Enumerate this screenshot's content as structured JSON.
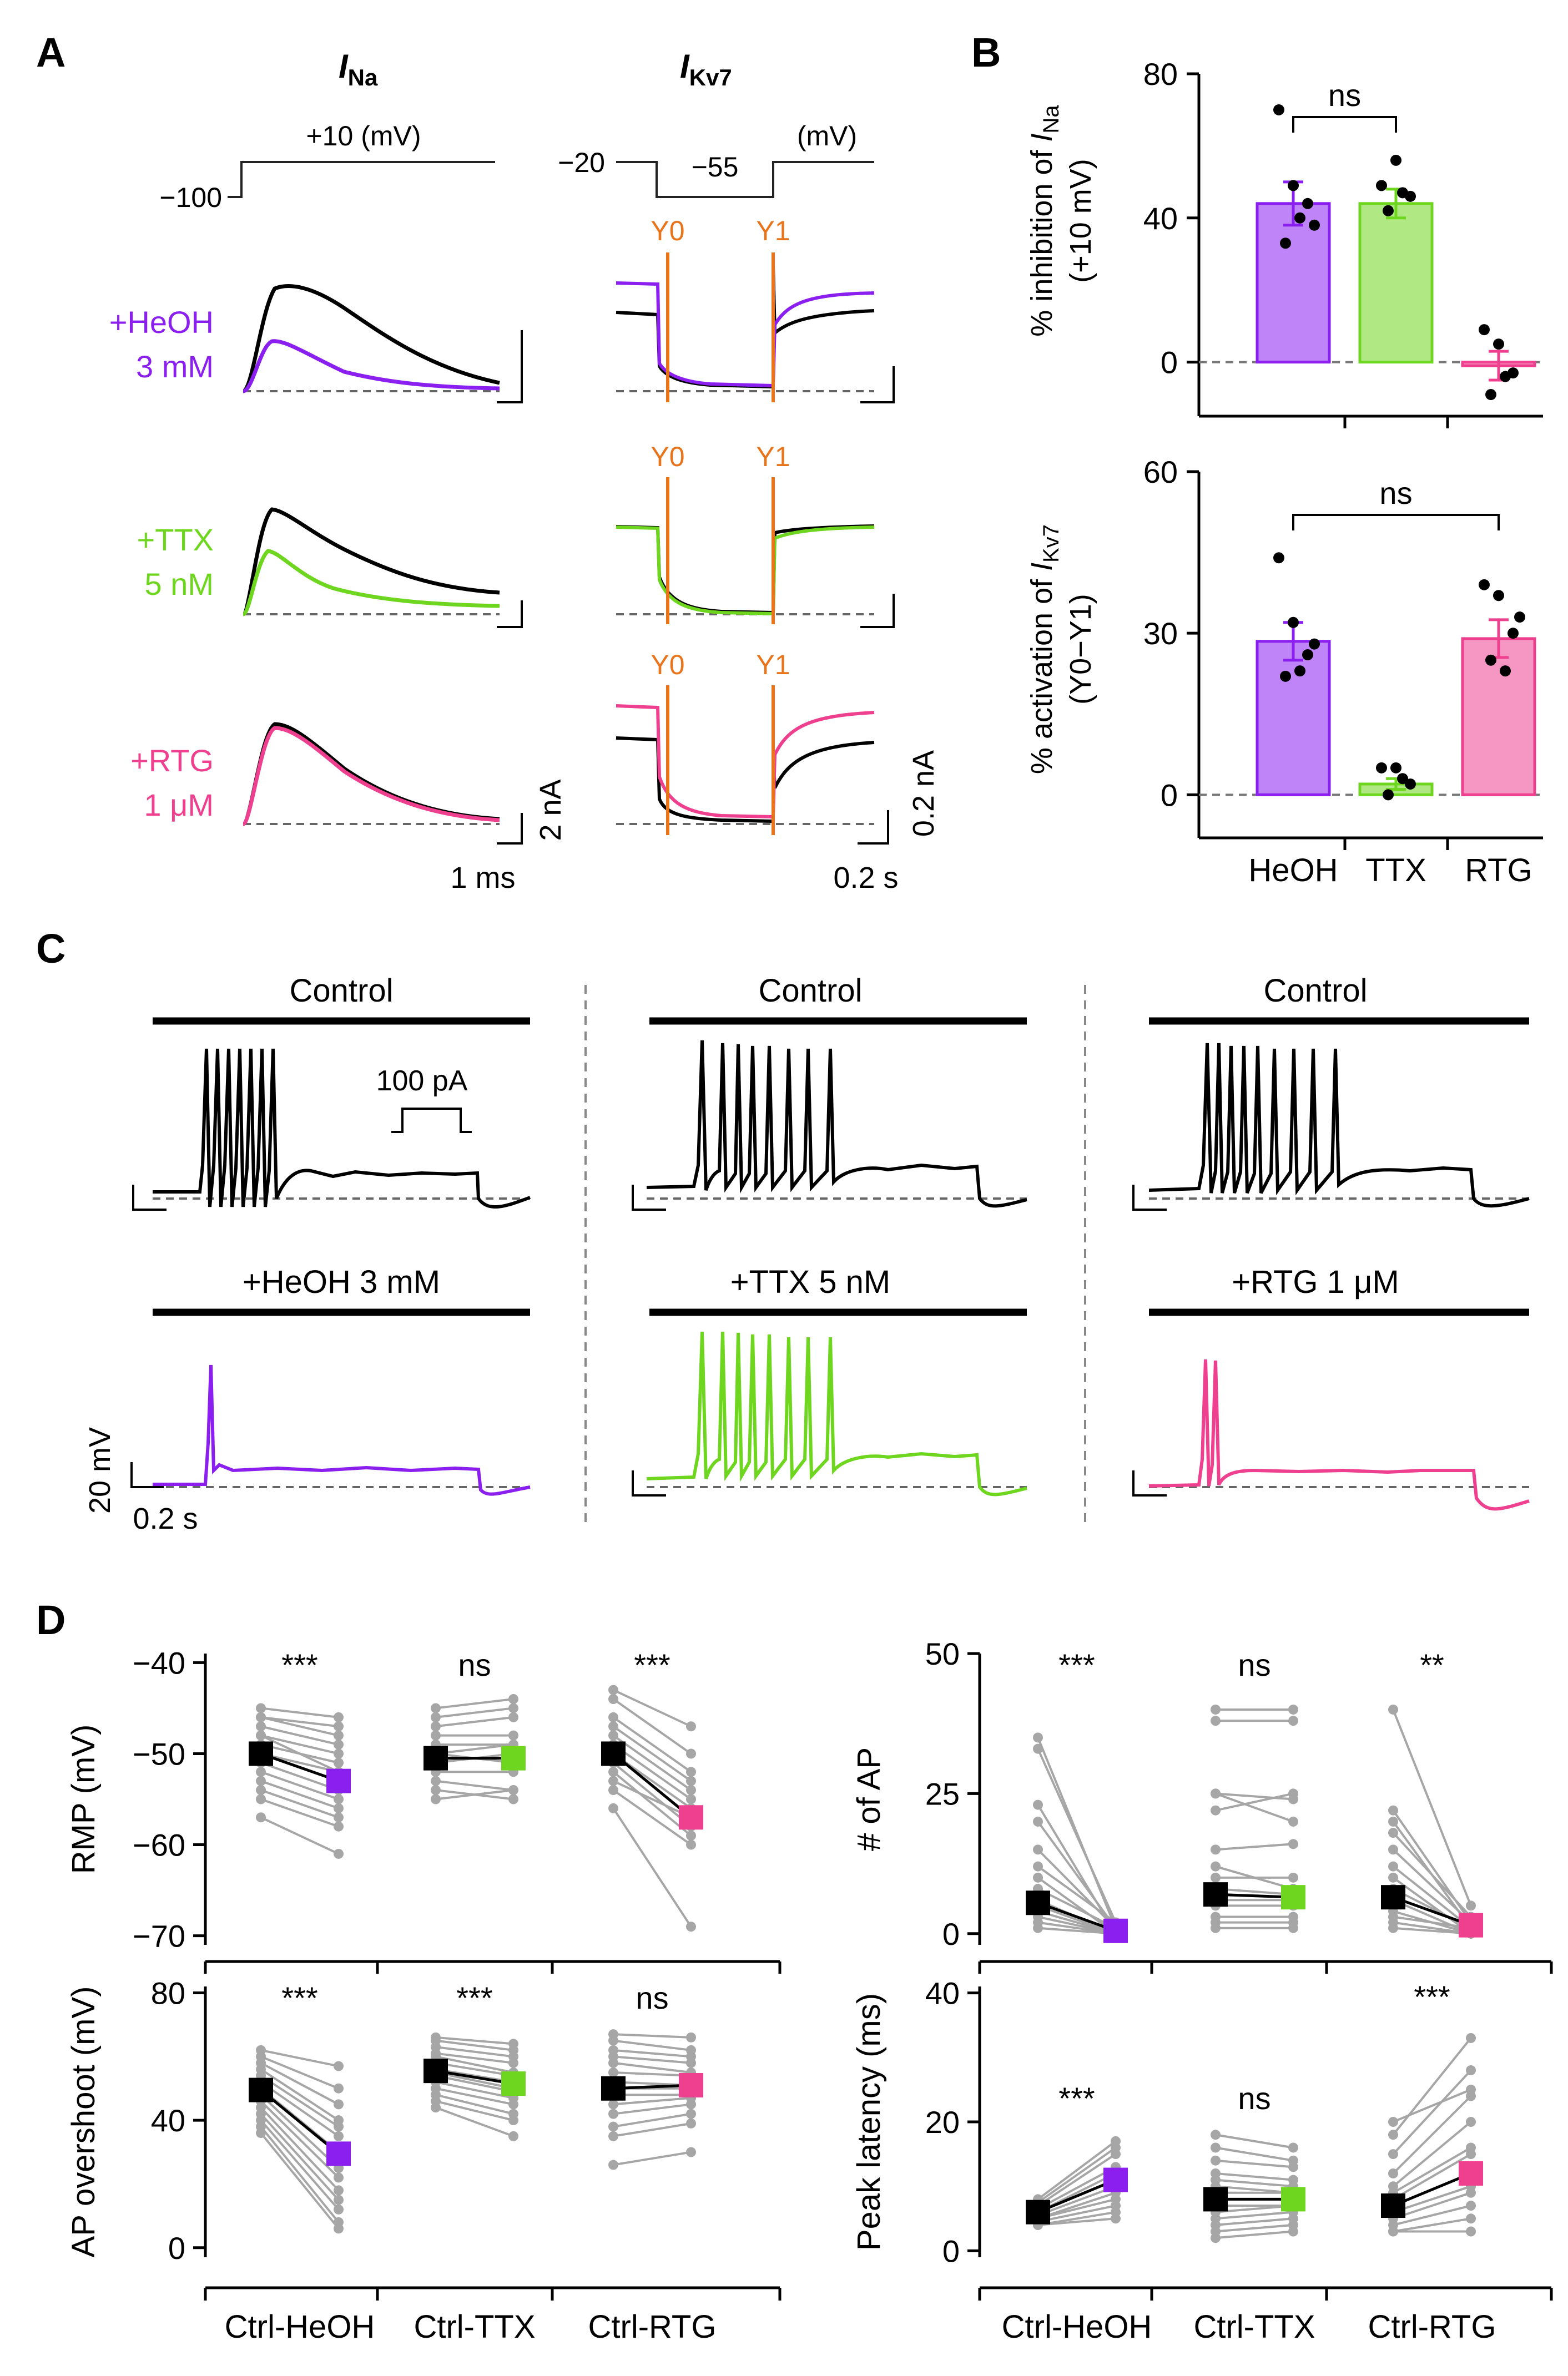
{
  "colors": {
    "black": "#000000",
    "heoh": "#8a1ff0",
    "ttx": "#6fd61f",
    "rtg": "#ef3f8f",
    "y_marker": "#e8741c",
    "grey": "#a6a6a6",
    "ref": "#777777"
  },
  "panels": {
    "A": "A",
    "B": "B",
    "C": "C",
    "D": "D"
  },
  "panelA": {
    "na_title": {
      "main": "I",
      "sub": "Na"
    },
    "kv_title": {
      "main": "I",
      "sub": "Kv7"
    },
    "na_protocol": {
      "hold": "−100",
      "step": "+10 (mV)"
    },
    "kv_protocol": {
      "hold": "−20",
      "step": "−55",
      "unit": "(mV)"
    },
    "rows": [
      {
        "line1": "+HeOH",
        "line2": "3 mM",
        "color_key": "heoh"
      },
      {
        "line1": "+TTX",
        "line2": "5 nM",
        "color_key": "ttx"
      },
      {
        "line1": "+RTG",
        "line2": "1 μM",
        "color_key": "rtg"
      }
    ],
    "y0": "Y0",
    "y1": "Y1",
    "na_scale": {
      "current": "2 nA",
      "time": "1 ms"
    },
    "kv_scale": {
      "current": "0.2 nA",
      "time": "0.2 s"
    }
  },
  "chart_data": [
    {
      "type": "bar",
      "panel": "B-top",
      "categories": [
        "HeOH",
        "TTX",
        "RTG"
      ],
      "values": [
        44,
        44,
        -1
      ],
      "sem": [
        6,
        4,
        4
      ],
      "points": [
        [
          70,
          49,
          44,
          33,
          40,
          38
        ],
        [
          49,
          56,
          46,
          42,
          47
        ],
        [
          9,
          5,
          -3,
          -9,
          -4
        ]
      ],
      "ylabel_main": "% inhibition of ",
      "ylabel_I": "I",
      "ylabel_sub": "Na",
      "ylabel2": "(+10 mV)",
      "ylim": [
        -15,
        80
      ],
      "yticks": [
        0,
        40,
        80
      ],
      "significance": {
        "between": [
          "HeOH",
          "TTX"
        ],
        "label": "ns"
      }
    },
    {
      "type": "bar",
      "panel": "B-bottom",
      "categories": [
        "HeOH",
        "TTX",
        "RTG"
      ],
      "values": [
        28.5,
        2,
        29
      ],
      "sem": [
        3.5,
        1,
        3.5
      ],
      "points": [
        [
          44,
          32,
          26,
          22,
          23,
          28
        ],
        [
          5,
          5,
          2,
          0,
          3
        ],
        [
          39,
          37,
          30,
          25,
          23,
          33
        ]
      ],
      "ylabel_main": "% activation of ",
      "ylabel_I": "I",
      "ylabel_sub": "Kv7",
      "ylabel2": "(Y0−Y1)",
      "ylim": [
        -8,
        60
      ],
      "yticks": [
        0,
        30,
        60
      ],
      "significance": {
        "between": [
          "HeOH",
          "RTG"
        ],
        "label": "ns"
      }
    },
    {
      "type": "line",
      "panel": "D-RMP",
      "ylabel": "RMP (mV)",
      "groups": [
        "Ctrl-HeOH",
        "Ctrl-TTX",
        "Ctrl-RTG"
      ],
      "means": [
        [
          -50,
          -53
        ],
        [
          -50.5,
          -50.5
        ],
        [
          -50,
          -57
        ]
      ],
      "stars": [
        "***",
        "ns",
        "***"
      ],
      "ylim": [
        -71,
        -39
      ],
      "yticks": [
        -40,
        -50,
        -60,
        -70
      ],
      "pairs": [
        [
          [
            -45,
            -46
          ],
          [
            -46,
            -47
          ],
          [
            -47,
            -49
          ],
          [
            -48,
            -50
          ],
          [
            -49,
            -51
          ],
          [
            -50,
            -52
          ],
          [
            -51,
            -54
          ],
          [
            -52,
            -55
          ],
          [
            -53,
            -56
          ],
          [
            -54,
            -57
          ],
          [
            -55,
            -58
          ],
          [
            -57,
            -61
          ],
          [
            -46,
            -48
          ],
          [
            -48,
            -52
          ]
        ],
        [
          [
            -45,
            -44
          ],
          [
            -47,
            -46
          ],
          [
            -48,
            -48
          ],
          [
            -49,
            -49
          ],
          [
            -50,
            -51
          ],
          [
            -51,
            -50
          ],
          [
            -52,
            -52
          ],
          [
            -53,
            -54
          ],
          [
            -54,
            -55
          ],
          [
            -55,
            -54
          ],
          [
            -46,
            -45
          ],
          [
            -50,
            -49
          ]
        ],
        [
          [
            -43,
            -47
          ],
          [
            -44,
            -50
          ],
          [
            -46,
            -52
          ],
          [
            -47,
            -53
          ],
          [
            -49,
            -55
          ],
          [
            -50,
            -56
          ],
          [
            -51,
            -58
          ],
          [
            -52,
            -59
          ],
          [
            -54,
            -60
          ],
          [
            -56,
            -69
          ],
          [
            -48,
            -54
          ],
          [
            -53,
            -57
          ]
        ]
      ]
    },
    {
      "type": "line",
      "panel": "D-AP",
      "ylabel": "# of AP",
      "groups": [
        "Ctrl-HeOH",
        "Ctrl-TTX",
        "Ctrl-RTG"
      ],
      "means": [
        [
          5.5,
          0.5
        ],
        [
          7,
          6.5
        ],
        [
          6.5,
          1.5
        ]
      ],
      "stars": [
        "***",
        "ns",
        "**"
      ],
      "ylim": [
        -2,
        50
      ],
      "yticks": [
        0,
        25,
        50
      ],
      "pairs": [
        [
          [
            35,
            1
          ],
          [
            33,
            2
          ],
          [
            23,
            0
          ],
          [
            20,
            1
          ],
          [
            15,
            1
          ],
          [
            10,
            0
          ],
          [
            8,
            1
          ],
          [
            6,
            0
          ],
          [
            5,
            0
          ],
          [
            4,
            0
          ],
          [
            3,
            0
          ],
          [
            2,
            0
          ],
          [
            1,
            0
          ],
          [
            12,
            2
          ]
        ],
        [
          [
            40,
            40
          ],
          [
            38,
            38
          ],
          [
            25,
            20
          ],
          [
            22,
            25
          ],
          [
            25,
            24
          ],
          [
            12,
            8
          ],
          [
            10,
            10
          ],
          [
            8,
            7
          ],
          [
            6,
            6
          ],
          [
            5,
            5
          ],
          [
            3,
            3
          ],
          [
            2,
            2
          ],
          [
            1,
            1
          ],
          [
            15,
            16
          ]
        ],
        [
          [
            40,
            5
          ],
          [
            22,
            2
          ],
          [
            20,
            1
          ],
          [
            18,
            3
          ],
          [
            15,
            2
          ],
          [
            12,
            1
          ],
          [
            10,
            0
          ],
          [
            8,
            1
          ],
          [
            6,
            0
          ],
          [
            4,
            0
          ],
          [
            3,
            1
          ],
          [
            2,
            0
          ],
          [
            1,
            0
          ]
        ]
      ]
    },
    {
      "type": "line",
      "panel": "D-overshoot",
      "ylabel": "AP overshoot (mV)",
      "groups": [
        "Ctrl-HeOH",
        "Ctrl-TTX",
        "Ctrl-RTG"
      ],
      "means": [
        [
          49.5,
          29.5
        ],
        [
          55.5,
          51.5
        ],
        [
          50,
          51
        ]
      ],
      "stars": [
        "***",
        "***",
        "ns"
      ],
      "ylim": [
        -3,
        82
      ],
      "yticks": [
        0,
        40,
        80
      ],
      "pairs": [
        [
          [
            62,
            57
          ],
          [
            60,
            50
          ],
          [
            58,
            45
          ],
          [
            56,
            40
          ],
          [
            54,
            38
          ],
          [
            52,
            35
          ],
          [
            50,
            30
          ],
          [
            48,
            25
          ],
          [
            46,
            22
          ],
          [
            44,
            18
          ],
          [
            42,
            15
          ],
          [
            40,
            12
          ],
          [
            38,
            8
          ],
          [
            36,
            6
          ]
        ],
        [
          [
            66,
            64
          ],
          [
            65,
            62
          ],
          [
            63,
            60
          ],
          [
            61,
            58
          ],
          [
            60,
            55
          ],
          [
            58,
            54
          ],
          [
            56,
            52
          ],
          [
            55,
            50
          ],
          [
            54,
            49
          ],
          [
            52,
            47
          ],
          [
            50,
            45
          ],
          [
            48,
            42
          ],
          [
            46,
            40
          ],
          [
            44,
            35
          ]
        ],
        [
          [
            67,
            66
          ],
          [
            65,
            62
          ],
          [
            62,
            60
          ],
          [
            60,
            58
          ],
          [
            58,
            55
          ],
          [
            55,
            54
          ],
          [
            52,
            51
          ],
          [
            50,
            50
          ],
          [
            48,
            48
          ],
          [
            45,
            47
          ],
          [
            42,
            45
          ],
          [
            38,
            42
          ],
          [
            35,
            39
          ],
          [
            26,
            30
          ]
        ]
      ]
    },
    {
      "type": "line",
      "panel": "D-latency",
      "ylabel": "Peak latency (ms)",
      "groups": [
        "Ctrl-HeOH",
        "Ctrl-TTX",
        "Ctrl-RTG"
      ],
      "means": [
        [
          6,
          11
        ],
        [
          8,
          8
        ],
        [
          7,
          12
        ]
      ],
      "stars": [
        "***",
        "ns",
        "***"
      ],
      "ylim": [
        -1,
        41
      ],
      "yticks": [
        0,
        20,
        40
      ],
      "pairs": [
        [
          [
            8,
            17
          ],
          [
            7.5,
            16
          ],
          [
            7,
            15
          ],
          [
            6.5,
            13
          ],
          [
            6,
            12
          ],
          [
            6,
            11
          ],
          [
            5.5,
            10
          ],
          [
            5,
            9
          ],
          [
            5,
            8
          ],
          [
            4.5,
            7
          ],
          [
            4,
            6
          ],
          [
            4,
            5
          ]
        ],
        [
          [
            18,
            16
          ],
          [
            16,
            14
          ],
          [
            14,
            13
          ],
          [
            12,
            11
          ],
          [
            11,
            10
          ],
          [
            10,
            9
          ],
          [
            9,
            9
          ],
          [
            8,
            8
          ],
          [
            7,
            7
          ],
          [
            6,
            7
          ],
          [
            5,
            6
          ],
          [
            4,
            5
          ],
          [
            3,
            4
          ],
          [
            2,
            3
          ]
        ],
        [
          [
            20,
            25
          ],
          [
            18,
            33
          ],
          [
            15,
            28
          ],
          [
            12,
            24
          ],
          [
            10,
            20
          ],
          [
            9,
            16
          ],
          [
            8,
            15
          ],
          [
            7,
            12
          ],
          [
            6,
            10
          ],
          [
            5,
            9
          ],
          [
            4,
            7
          ],
          [
            3,
            5
          ],
          [
            3,
            3
          ]
        ]
      ]
    }
  ],
  "panelC": {
    "control_label": "Control",
    "drug_labels": [
      "+HeOH 3 mM",
      "+TTX 5 nM",
      "+RTG 1 μM"
    ],
    "inset_label": "100 pA",
    "scale_v": "20 mV",
    "scale_t": "0.2 s"
  }
}
